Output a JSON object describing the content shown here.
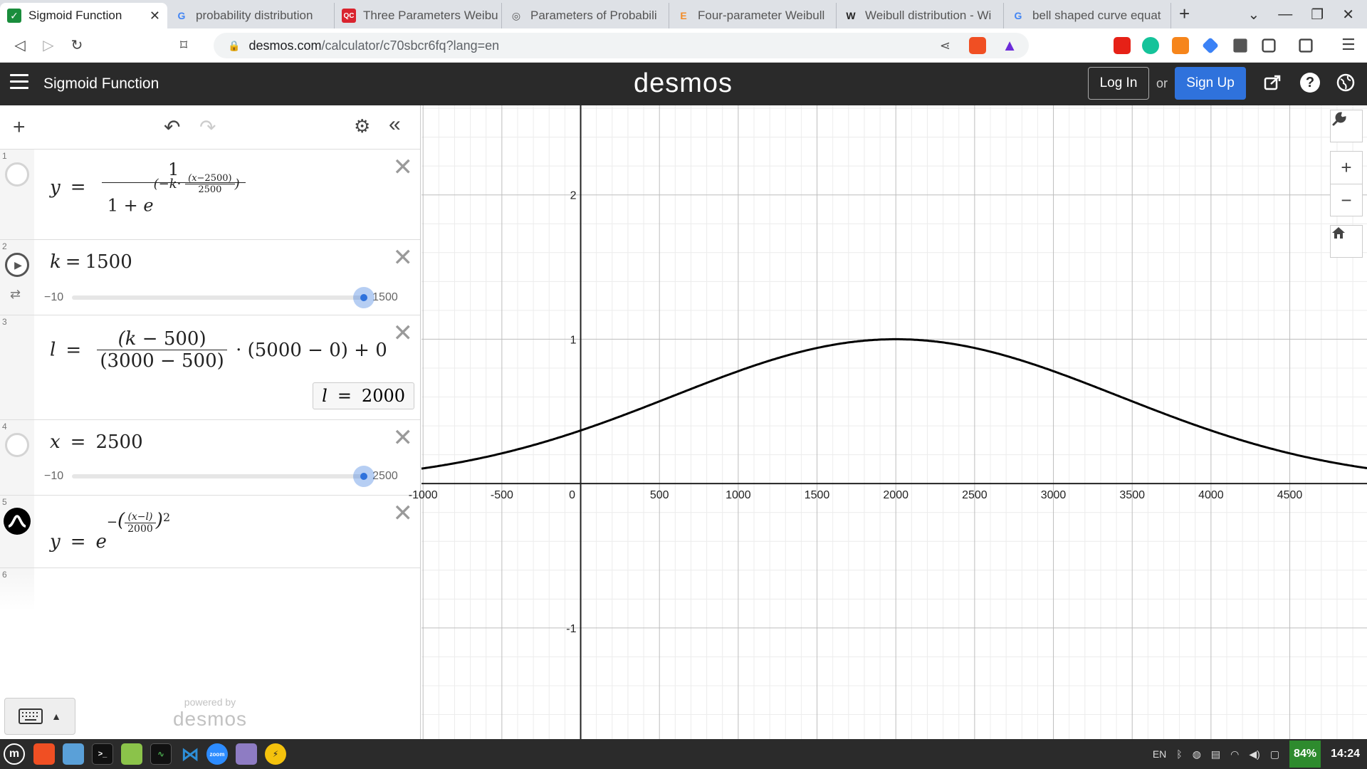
{
  "browser": {
    "tabs": [
      {
        "title": "Sigmoid Function",
        "icon": "desmos-favicon-icon",
        "color": "#1a8d3c",
        "active": true
      },
      {
        "title": "probability distribution",
        "icon": "google-favicon-icon",
        "color": "#4285f4"
      },
      {
        "title": "Three Parameters Weibu",
        "icon": "qc-favicon-icon",
        "color": "#d9232e"
      },
      {
        "title": "Parameters of Probabili",
        "icon": "page-favicon-icon",
        "color": "#555555"
      },
      {
        "title": "Four-parameter Weibull",
        "icon": "e-favicon-icon",
        "color": "#f28c28"
      },
      {
        "title": "Weibull distribution - Wi",
        "icon": "wikipedia-favicon-icon",
        "color": "#222222"
      },
      {
        "title": "bell shaped curve equat",
        "icon": "google-favicon-icon",
        "color": "#4285f4"
      }
    ],
    "url_host": "desmos.com",
    "url_path": "/calculator/c70sbcr6fq?lang=en"
  },
  "desmos": {
    "graph_title": "Sigmoid Function",
    "brand": "desmos",
    "login_label": "Log In",
    "or_label": "or",
    "signup_label": "Sign Up",
    "powered_by": "powered by",
    "powered_brand": "desmos"
  },
  "expressions": [
    {
      "index": "1"
    },
    {
      "index": "2",
      "var": "k",
      "value": "1500",
      "slider_min": "−10",
      "slider_max": "1500",
      "slider_fraction": 1.0
    },
    {
      "index": "3",
      "result_label": "l",
      "result_value": "2000"
    },
    {
      "index": "4",
      "var": "x",
      "value": "2500",
      "slider_min": "−10",
      "slider_max": "2500",
      "slider_fraction": 1.0
    },
    {
      "index": "5"
    },
    {
      "index": "6"
    }
  ],
  "colors": {
    "accent": "#2f72dc",
    "header_bg": "#2a2a2a",
    "curve": "#000000"
  },
  "chart_data": {
    "type": "line",
    "x_ticks": [
      "-1000",
      "-500",
      "0",
      "500",
      "1000",
      "1500",
      "2000",
      "2500",
      "3000",
      "3500",
      "4000",
      "4500"
    ],
    "y_ticks": [
      "2",
      "1",
      "-1"
    ],
    "xlim": [
      -1010,
      4990
    ],
    "ylim": [
      -1.77,
      2.62
    ],
    "grid": true,
    "series": [
      {
        "function": "gaussian",
        "l": 2000,
        "width": 2000
      }
    ],
    "sample_points": [
      {
        "x": -1000,
        "y": 0.105
      },
      {
        "x": 0,
        "y": 0.368
      },
      {
        "x": 1000,
        "y": 0.779
      },
      {
        "x": 2000,
        "y": 1.0
      },
      {
        "x": 3000,
        "y": 0.779
      },
      {
        "x": 4000,
        "y": 0.368
      },
      {
        "x": 4500,
        "y": 0.21
      }
    ]
  },
  "taskbar": {
    "lang": "EN",
    "battery": "84%",
    "time": "14:24"
  }
}
